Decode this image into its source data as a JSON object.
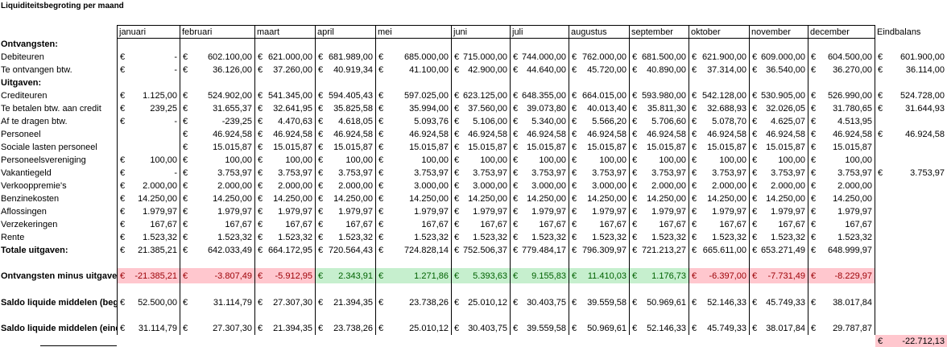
{
  "title": "Liquiditeitsbegroting per maand",
  "currency": "€",
  "columns": [
    "januari",
    "februari",
    "maart",
    "april",
    "mei",
    "juni",
    "juli",
    "augustus",
    "september",
    "oktober",
    "november",
    "december",
    "Eindbalans"
  ],
  "rows": [
    {
      "label": "Ontvangsten:",
      "bold": true
    },
    {
      "label": "Debiteuren",
      "values": [
        "-",
        "602.100,00",
        "621.000,00",
        "681.989,00",
        "685.000,00",
        "715.000,00",
        "744.000,00",
        "762.000,00",
        "681.500,00",
        "621.900,00",
        "609.000,00",
        "604.500,00",
        "601.900,00"
      ]
    },
    {
      "label": "Te ontvangen btw.",
      "values": [
        "-",
        "36.126,00",
        "37.260,00",
        "40.919,34",
        "41.100,00",
        "42.900,00",
        "44.640,00",
        "45.720,00",
        "40.890,00",
        "37.314,00",
        "36.540,00",
        "36.270,00",
        "36.114,00"
      ]
    },
    {
      "label": "Uitgaven:",
      "bold": true
    },
    {
      "label": "Crediteuren",
      "values": [
        "1.125,00",
        "524.902,00",
        "541.345,00",
        "594.405,43",
        "597.025,00",
        "623.125,00",
        "648.355,00",
        "664.015,00",
        "593.980,00",
        "542.128,00",
        "530.905,00",
        "526.990,00",
        "524.728,00"
      ]
    },
    {
      "label": "Te betalen btw. aan credit",
      "values": [
        "239,25",
        "31.655,37",
        "32.641,95",
        "35.825,58",
        "35.994,00",
        "37.560,00",
        "39.073,80",
        "40.013,40",
        "35.811,30",
        "32.688,93",
        "32.026,05",
        "31.780,65",
        "31.644,93"
      ]
    },
    {
      "label": "Af te dragen btw.",
      "values": [
        "-",
        "-239,25",
        "4.470,63",
        "4.618,05",
        "5.093,76",
        "5.106,00",
        "5.340,00",
        "5.566,20",
        "5.706,60",
        "5.078,70",
        "4.625,07",
        "4.513,95",
        null
      ]
    },
    {
      "label": "Personeel",
      "values": [
        null,
        "46.924,58",
        "46.924,58",
        "46.924,58",
        "46.924,58",
        "46.924,58",
        "46.924,58",
        "46.924,58",
        "46.924,58",
        "46.924,58",
        "46.924,58",
        "46.924,58",
        "46.924,58"
      ]
    },
    {
      "label": "Sociale lasten personeel",
      "values": [
        null,
        "15.015,87",
        "15.015,87",
        "15.015,87",
        "15.015,87",
        "15.015,87",
        "15.015,87",
        "15.015,87",
        "15.015,87",
        "15.015,87",
        "15.015,87",
        "15.015,87",
        null
      ]
    },
    {
      "label": "Personeelsvereniging",
      "values": [
        "100,00",
        "100,00",
        "100,00",
        "100,00",
        "100,00",
        "100,00",
        "100,00",
        "100,00",
        "100,00",
        "100,00",
        "100,00",
        "100,00",
        null
      ]
    },
    {
      "label": "Vakantiegeld",
      "values": [
        "-",
        "3.753,97",
        "3.753,97",
        "3.753,97",
        "3.753,97",
        "3.753,97",
        "3.753,97",
        "3.753,97",
        "3.753,97",
        "3.753,97",
        "3.753,97",
        "3.753,97",
        "3.753,97"
      ]
    },
    {
      "label": "Verkooppremie's",
      "values": [
        "2.000,00",
        "2.000,00",
        "2.000,00",
        "2.000,00",
        "3.000,00",
        "3.000,00",
        "3.000,00",
        "3.000,00",
        "2.000,00",
        "2.000,00",
        "2.000,00",
        "2.000,00",
        null
      ]
    },
    {
      "label": "Benzinekosten",
      "values": [
        "14.250,00",
        "14.250,00",
        "14.250,00",
        "14.250,00",
        "14.250,00",
        "14.250,00",
        "14.250,00",
        "14.250,00",
        "14.250,00",
        "14.250,00",
        "14.250,00",
        "14.250,00",
        null
      ]
    },
    {
      "label": "Aflossingen",
      "values": [
        "1.979,97",
        "1.979,97",
        "1.979,97",
        "1.979,97",
        "1.979,97",
        "1.979,97",
        "1.979,97",
        "1.979,97",
        "1.979,97",
        "1.979,97",
        "1.979,97",
        "1.979,97",
        null
      ]
    },
    {
      "label": "Verzekeringen",
      "values": [
        "167,67",
        "167,67",
        "167,67",
        "167,67",
        "167,67",
        "167,67",
        "167,67",
        "167,67",
        "167,67",
        "167,67",
        "167,67",
        "167,67",
        null
      ]
    },
    {
      "label": "Rente",
      "values": [
        "1.523,32",
        "1.523,32",
        "1.523,32",
        "1.523,32",
        "1.523,32",
        "1.523,32",
        "1.523,32",
        "1.523,32",
        "1.523,32",
        "1.523,32",
        "1.523,32",
        "1.523,32",
        null
      ]
    },
    {
      "label": "Totale uitgaven:",
      "bold": true,
      "values": [
        "21.385,21",
        "642.033,49",
        "664.172,95",
        "720.564,43",
        "724.828,14",
        "752.506,37",
        "779.484,17",
        "796.309,97",
        "721.213,27",
        "665.611,00",
        "653.271,49",
        "648.999,97",
        null
      ]
    },
    {
      "label": "Ontvangsten minus uitgaven",
      "bold": true,
      "highlight": true,
      "values": [
        "-21.385,21",
        "-3.807,49",
        "-5.912,95",
        "2.343,91",
        "1.271,86",
        "5.393,63",
        "9.155,83",
        "11.410,03",
        "1.176,73",
        "-6.397,00",
        "-7.731,49",
        "-8.229,97",
        null
      ]
    },
    {
      "label": "Saldo liquide middelen (begi",
      "bold": true,
      "values": [
        "52.500,00",
        "31.114,79",
        "27.307,30",
        "21.394,35",
        "23.738,26",
        "25.010,12",
        "30.403,75",
        "39.559,58",
        "50.969,61",
        "52.146,33",
        "45.749,33",
        "38.017,84",
        null
      ]
    },
    {
      "label": "Saldo liquide middelen (einde",
      "bold": true,
      "values": [
        "31.114,79",
        "27.307,30",
        "21.394,35",
        "23.738,26",
        "25.010,12",
        "30.403,75",
        "39.559,58",
        "50.969,61",
        "52.146,33",
        "45.749,33",
        "38.017,84",
        "29.787,87",
        null
      ]
    }
  ],
  "final_balance": "-22.712,13"
}
